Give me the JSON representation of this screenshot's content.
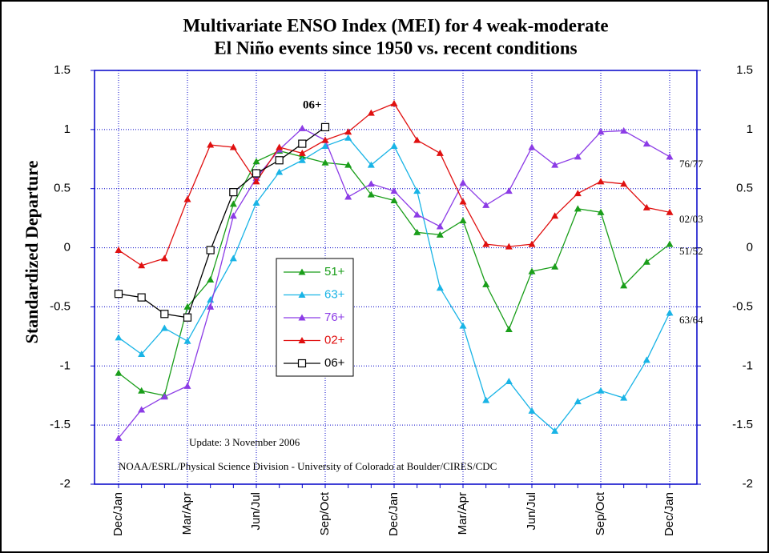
{
  "chart_data": {
    "type": "line",
    "title": [
      "Multivariate ENSO Index (MEI) for 4 weak-moderate",
      "El Niño events since 1950 vs. recent conditions"
    ],
    "ylabel": "Standardized Departure",
    "categories": [
      "Dec/Jan",
      null,
      null,
      "Mar/Apr",
      null,
      null,
      "Jun/Jul",
      null,
      null,
      "Sep/Oct",
      null,
      null,
      "Dec/Jan",
      null,
      null,
      "Mar/Apr",
      null,
      null,
      "Jun/Jul",
      null,
      null,
      "Sep/Oct",
      null,
      null,
      "Dec/Jan"
    ],
    "ylim": [
      -2,
      1.5
    ],
    "yticks": [
      1.5,
      1,
      0.5,
      0,
      -0.5,
      -1,
      -1.5,
      -2
    ],
    "y2lim": [
      -2,
      1.5
    ],
    "y2ticks": [
      1.5,
      1,
      0.5,
      0,
      -0.5,
      -1,
      -1.5,
      -2
    ],
    "grid": true,
    "series": [
      {
        "name": "51+",
        "color": "#1a9e1a",
        "marker": "triangle",
        "end_label": "51/52",
        "values": [
          -1.06,
          -1.21,
          -1.25,
          -0.5,
          -0.27,
          0.37,
          0.73,
          0.82,
          0.77,
          0.72,
          0.7,
          0.45,
          0.4,
          0.13,
          0.11,
          0.23,
          -0.31,
          -0.69,
          -0.2,
          -0.16,
          0.33,
          0.3,
          -0.32,
          -0.12,
          0.03
        ]
      },
      {
        "name": "63+",
        "color": "#19b4e6",
        "marker": "triangle",
        "end_label": "63/64",
        "values": [
          -0.76,
          -0.9,
          -0.68,
          -0.79,
          -0.44,
          -0.09,
          0.38,
          0.64,
          0.74,
          0.86,
          0.93,
          0.7,
          0.86,
          0.48,
          -0.34,
          -0.66,
          -1.29,
          -1.13,
          -1.38,
          -1.55,
          -1.3,
          -1.21,
          -1.27,
          -0.95,
          -0.55
        ]
      },
      {
        "name": "76+",
        "color": "#8c3ce6",
        "marker": "triangle",
        "end_label": "76/77",
        "values": [
          -1.61,
          -1.37,
          -1.26,
          -1.17,
          -0.5,
          0.27,
          0.59,
          0.83,
          1.01,
          0.91,
          0.43,
          0.54,
          0.48,
          0.28,
          0.18,
          0.55,
          0.36,
          0.48,
          0.85,
          0.7,
          0.77,
          0.98,
          0.99,
          0.88,
          0.77
        ]
      },
      {
        "name": "02+",
        "color": "#e01010",
        "marker": "triangle",
        "end_label": "02/03",
        "values": [
          -0.02,
          -0.15,
          -0.09,
          0.41,
          0.87,
          0.85,
          0.56,
          0.85,
          0.8,
          0.91,
          0.98,
          1.14,
          1.22,
          0.91,
          0.8,
          0.39,
          0.03,
          0.01,
          0.03,
          0.27,
          0.46,
          0.56,
          0.54,
          0.34,
          0.3
        ]
      },
      {
        "name": "06+",
        "color": "#000000",
        "marker": "square",
        "end_label": "06+",
        "values": [
          -0.39,
          -0.42,
          -0.56,
          -0.59,
          -0.02,
          0.47,
          0.63,
          0.74,
          0.88,
          1.02,
          null,
          null,
          null,
          null,
          null,
          null,
          null,
          null,
          null,
          null,
          null,
          null,
          null,
          null,
          null
        ]
      }
    ],
    "annotations": [
      "Update: 3 November 2006",
      "NOAA/ESRL/Physical Science Division - University of Colorado at Boulder/CIRES/CDC"
    ]
  }
}
